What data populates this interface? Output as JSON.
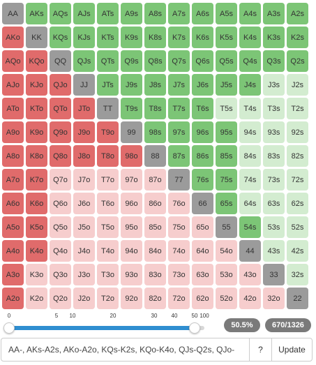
{
  "colors": {
    "pair_selected": "#9b9b9b",
    "pair_unselected": "#a9a9a9",
    "suited_selected": "#7cc576",
    "suited_unselected": "#d3ecd0",
    "offsuit_selected": "#e06b6b",
    "offsuit_unselected": "#f6cdcd",
    "slider_fill": "#2f8ed0",
    "badge": "#7a7a7a"
  },
  "ranks": [
    "A",
    "K",
    "Q",
    "J",
    "T",
    "9",
    "8",
    "7",
    "6",
    "5",
    "4",
    "3",
    "2"
  ],
  "grid": {
    "rows": [
      {
        "cells": [
          {
            "label": "AA",
            "selected": true
          },
          {
            "label": "AKs",
            "selected": true
          },
          {
            "label": "AQs",
            "selected": true
          },
          {
            "label": "AJs",
            "selected": true
          },
          {
            "label": "ATs",
            "selected": true
          },
          {
            "label": "A9s",
            "selected": true
          },
          {
            "label": "A8s",
            "selected": true
          },
          {
            "label": "A7s",
            "selected": true
          },
          {
            "label": "A6s",
            "selected": true
          },
          {
            "label": "A5s",
            "selected": true
          },
          {
            "label": "A4s",
            "selected": true
          },
          {
            "label": "A3s",
            "selected": true
          },
          {
            "label": "A2s",
            "selected": true
          }
        ]
      },
      {
        "cells": [
          {
            "label": "AKo",
            "selected": true
          },
          {
            "label": "KK",
            "selected": true
          },
          {
            "label": "KQs",
            "selected": true
          },
          {
            "label": "KJs",
            "selected": true
          },
          {
            "label": "KTs",
            "selected": true
          },
          {
            "label": "K9s",
            "selected": true
          },
          {
            "label": "K8s",
            "selected": true
          },
          {
            "label": "K7s",
            "selected": true
          },
          {
            "label": "K6s",
            "selected": true
          },
          {
            "label": "K5s",
            "selected": true
          },
          {
            "label": "K4s",
            "selected": true
          },
          {
            "label": "K3s",
            "selected": true
          },
          {
            "label": "K2s",
            "selected": true
          }
        ]
      },
      {
        "cells": [
          {
            "label": "AQo",
            "selected": true
          },
          {
            "label": "KQo",
            "selected": true
          },
          {
            "label": "QQ",
            "selected": true
          },
          {
            "label": "QJs",
            "selected": true
          },
          {
            "label": "QTs",
            "selected": true
          },
          {
            "label": "Q9s",
            "selected": true
          },
          {
            "label": "Q8s",
            "selected": true
          },
          {
            "label": "Q7s",
            "selected": true
          },
          {
            "label": "Q6s",
            "selected": true
          },
          {
            "label": "Q5s",
            "selected": true
          },
          {
            "label": "Q4s",
            "selected": true
          },
          {
            "label": "Q3s",
            "selected": true
          },
          {
            "label": "Q2s",
            "selected": true
          }
        ]
      },
      {
        "cells": [
          {
            "label": "AJo",
            "selected": true
          },
          {
            "label": "KJo",
            "selected": true
          },
          {
            "label": "QJo",
            "selected": true
          },
          {
            "label": "JJ",
            "selected": true
          },
          {
            "label": "JTs",
            "selected": true
          },
          {
            "label": "J9s",
            "selected": true
          },
          {
            "label": "J8s",
            "selected": true
          },
          {
            "label": "J7s",
            "selected": true
          },
          {
            "label": "J6s",
            "selected": true
          },
          {
            "label": "J5s",
            "selected": true
          },
          {
            "label": "J4s",
            "selected": true
          },
          {
            "label": "J3s",
            "selected": false
          },
          {
            "label": "J2s",
            "selected": false
          }
        ]
      },
      {
        "cells": [
          {
            "label": "ATo",
            "selected": true
          },
          {
            "label": "KTo",
            "selected": true
          },
          {
            "label": "QTo",
            "selected": true
          },
          {
            "label": "JTo",
            "selected": true
          },
          {
            "label": "TT",
            "selected": true
          },
          {
            "label": "T9s",
            "selected": true
          },
          {
            "label": "T8s",
            "selected": true
          },
          {
            "label": "T7s",
            "selected": true
          },
          {
            "label": "T6s",
            "selected": true
          },
          {
            "label": "T5s",
            "selected": false
          },
          {
            "label": "T4s",
            "selected": false
          },
          {
            "label": "T3s",
            "selected": false
          },
          {
            "label": "T2s",
            "selected": false
          }
        ]
      },
      {
        "cells": [
          {
            "label": "A9o",
            "selected": true
          },
          {
            "label": "K9o",
            "selected": true
          },
          {
            "label": "Q9o",
            "selected": true
          },
          {
            "label": "J9o",
            "selected": true
          },
          {
            "label": "T9o",
            "selected": true
          },
          {
            "label": "99",
            "selected": true
          },
          {
            "label": "98s",
            "selected": true
          },
          {
            "label": "97s",
            "selected": true
          },
          {
            "label": "96s",
            "selected": true
          },
          {
            "label": "95s",
            "selected": true
          },
          {
            "label": "94s",
            "selected": false
          },
          {
            "label": "93s",
            "selected": false
          },
          {
            "label": "92s",
            "selected": false
          }
        ]
      },
      {
        "cells": [
          {
            "label": "A8o",
            "selected": true
          },
          {
            "label": "K8o",
            "selected": true
          },
          {
            "label": "Q8o",
            "selected": true
          },
          {
            "label": "J8o",
            "selected": true
          },
          {
            "label": "T8o",
            "selected": true
          },
          {
            "label": "98o",
            "selected": true
          },
          {
            "label": "88",
            "selected": true
          },
          {
            "label": "87s",
            "selected": true
          },
          {
            "label": "86s",
            "selected": true
          },
          {
            "label": "85s",
            "selected": true
          },
          {
            "label": "84s",
            "selected": false
          },
          {
            "label": "83s",
            "selected": false
          },
          {
            "label": "82s",
            "selected": false
          }
        ]
      },
      {
        "cells": [
          {
            "label": "A7o",
            "selected": true
          },
          {
            "label": "K7o",
            "selected": true
          },
          {
            "label": "Q7o",
            "selected": false
          },
          {
            "label": "J7o",
            "selected": false
          },
          {
            "label": "T7o",
            "selected": false
          },
          {
            "label": "97o",
            "selected": false
          },
          {
            "label": "87o",
            "selected": false
          },
          {
            "label": "77",
            "selected": true
          },
          {
            "label": "76s",
            "selected": true
          },
          {
            "label": "75s",
            "selected": true
          },
          {
            "label": "74s",
            "selected": false
          },
          {
            "label": "73s",
            "selected": false
          },
          {
            "label": "72s",
            "selected": false
          }
        ]
      },
      {
        "cells": [
          {
            "label": "A6o",
            "selected": true
          },
          {
            "label": "K6o",
            "selected": true
          },
          {
            "label": "Q6o",
            "selected": false
          },
          {
            "label": "J6o",
            "selected": false
          },
          {
            "label": "T6o",
            "selected": false
          },
          {
            "label": "96o",
            "selected": false
          },
          {
            "label": "86o",
            "selected": false
          },
          {
            "label": "76o",
            "selected": false
          },
          {
            "label": "66",
            "selected": true
          },
          {
            "label": "65s",
            "selected": true
          },
          {
            "label": "64s",
            "selected": false
          },
          {
            "label": "63s",
            "selected": false
          },
          {
            "label": "62s",
            "selected": false
          }
        ]
      },
      {
        "cells": [
          {
            "label": "A5o",
            "selected": true
          },
          {
            "label": "K5o",
            "selected": true
          },
          {
            "label": "Q5o",
            "selected": false
          },
          {
            "label": "J5o",
            "selected": false
          },
          {
            "label": "T5o",
            "selected": false
          },
          {
            "label": "95o",
            "selected": false
          },
          {
            "label": "85o",
            "selected": false
          },
          {
            "label": "75o",
            "selected": false
          },
          {
            "label": "65o",
            "selected": false
          },
          {
            "label": "55",
            "selected": true
          },
          {
            "label": "54s",
            "selected": true
          },
          {
            "label": "53s",
            "selected": false
          },
          {
            "label": "52s",
            "selected": false
          }
        ]
      },
      {
        "cells": [
          {
            "label": "A4o",
            "selected": true
          },
          {
            "label": "K4o",
            "selected": true
          },
          {
            "label": "Q4o",
            "selected": false
          },
          {
            "label": "J4o",
            "selected": false
          },
          {
            "label": "T4o",
            "selected": false
          },
          {
            "label": "94o",
            "selected": false
          },
          {
            "label": "84o",
            "selected": false
          },
          {
            "label": "74o",
            "selected": false
          },
          {
            "label": "64o",
            "selected": false
          },
          {
            "label": "54o",
            "selected": false
          },
          {
            "label": "44",
            "selected": true
          },
          {
            "label": "43s",
            "selected": false
          },
          {
            "label": "42s",
            "selected": false
          }
        ]
      },
      {
        "cells": [
          {
            "label": "A3o",
            "selected": true
          },
          {
            "label": "K3o",
            "selected": false
          },
          {
            "label": "Q3o",
            "selected": false
          },
          {
            "label": "J3o",
            "selected": false
          },
          {
            "label": "T3o",
            "selected": false
          },
          {
            "label": "93o",
            "selected": false
          },
          {
            "label": "83o",
            "selected": false
          },
          {
            "label": "73o",
            "selected": false
          },
          {
            "label": "63o",
            "selected": false
          },
          {
            "label": "53o",
            "selected": false
          },
          {
            "label": "43o",
            "selected": false
          },
          {
            "label": "33",
            "selected": true
          },
          {
            "label": "32s",
            "selected": false
          }
        ]
      },
      {
        "cells": [
          {
            "label": "A2o",
            "selected": true
          },
          {
            "label": "K2o",
            "selected": false
          },
          {
            "label": "Q2o",
            "selected": false
          },
          {
            "label": "J2o",
            "selected": false
          },
          {
            "label": "T2o",
            "selected": false
          },
          {
            "label": "92o",
            "selected": false
          },
          {
            "label": "82o",
            "selected": false
          },
          {
            "label": "72o",
            "selected": false
          },
          {
            "label": "62o",
            "selected": false
          },
          {
            "label": "52o",
            "selected": false
          },
          {
            "label": "42o",
            "selected": false
          },
          {
            "label": "32o",
            "selected": false
          },
          {
            "label": "22",
            "selected": true
          }
        ]
      }
    ]
  },
  "slider": {
    "min": 0,
    "max": 100,
    "low": 0,
    "high": 50.5,
    "ticks": [
      "0",
      "5",
      "10",
      "20",
      "30",
      "40",
      "50",
      "100"
    ]
  },
  "stats": {
    "percent": "50.5%",
    "combos": "670/1326"
  },
  "range_input": {
    "value": "AA-, AKs-A2s, AKo-A2o, KQs-K2s, KQo-K4o, QJs-Q2s, QJo-"
  },
  "buttons": {
    "help": "?",
    "update": "Update"
  }
}
